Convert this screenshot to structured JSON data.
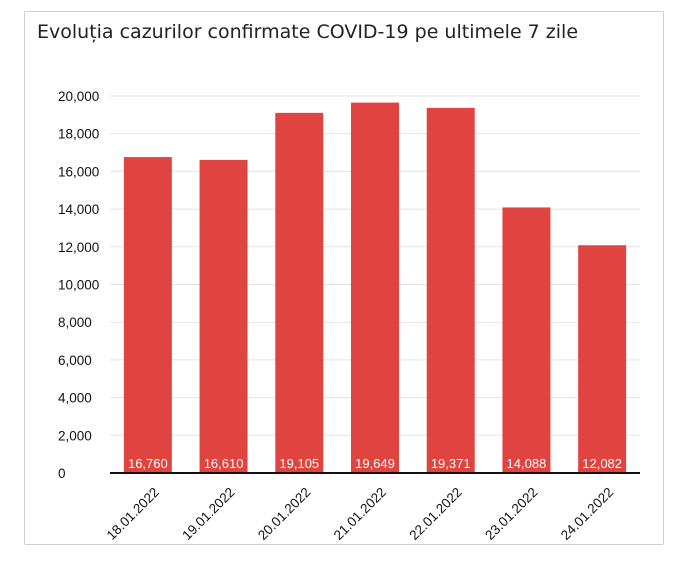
{
  "chart_data": {
    "type": "bar",
    "title": "Evoluția cazurilor confirmate COVID-19 pe ultimele 7 zile",
    "xlabel": "",
    "ylabel": "",
    "categories": [
      "18.01.2022",
      "19.01.2022",
      "20.01.2022",
      "21.01.2022",
      "22.01.2022",
      "23.01.2022",
      "24.01.2022"
    ],
    "values": [
      16760,
      16610,
      19105,
      19649,
      19371,
      14088,
      12082
    ],
    "data_labels": [
      "16,760",
      "16,610",
      "19,105",
      "19,649",
      "19,371",
      "14,088",
      "12,082"
    ],
    "ylim": [
      0,
      20000
    ],
    "yticks": [
      0,
      2000,
      4000,
      6000,
      8000,
      10000,
      12000,
      14000,
      16000,
      18000,
      20000
    ],
    "ytick_labels": [
      "0",
      "2,000",
      "4,000",
      "6,000",
      "8,000",
      "10,000",
      "12,000",
      "14,000",
      "16,000",
      "18,000",
      "20,000"
    ],
    "grid": true,
    "legend": "none",
    "bar_color": "#e04440"
  }
}
